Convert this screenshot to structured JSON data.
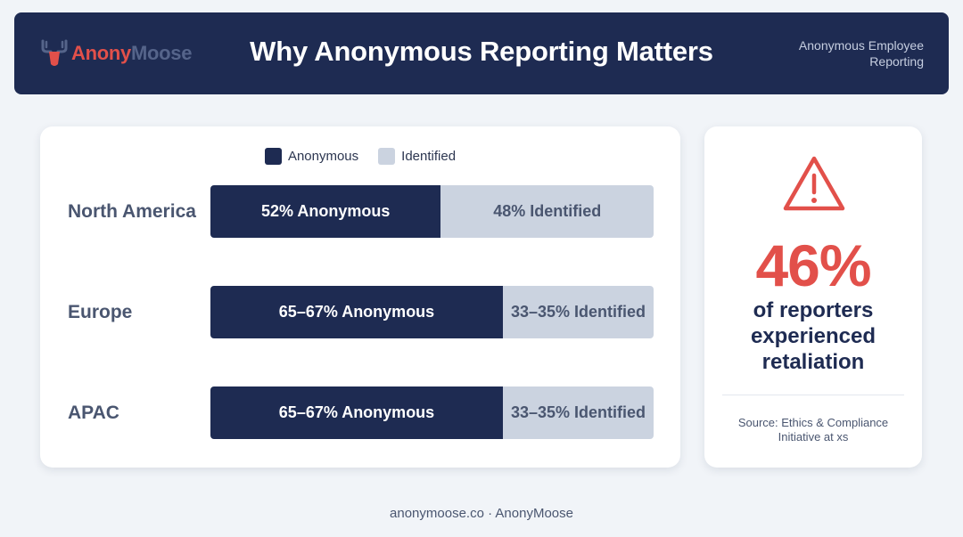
{
  "header": {
    "logo_part1": "Anony",
    "logo_part2": "Moose",
    "title": "Why Anonymous Reporting Matters",
    "tagline": "Anonymous Employee Reporting"
  },
  "colors": {
    "header_bg": "#1e2b52",
    "anonymous": "#1e2b52",
    "identified": "#cbd3e0",
    "accent": "#e2504a"
  },
  "chart_data": {
    "type": "bar",
    "orientation": "horizontal",
    "stacked": true,
    "categories": [
      "North America",
      "Europe",
      "APAC"
    ],
    "series": [
      {
        "name": "Anonymous",
        "values": [
          52,
          66,
          66
        ],
        "labels": [
          "52% Anonymous",
          "65–67% Anonymous",
          "65–67% Anonymous"
        ]
      },
      {
        "name": "Identified",
        "values": [
          48,
          34,
          34
        ],
        "labels": [
          "48% Identified",
          "33–35% Identified",
          "33–35% Identified"
        ]
      }
    ],
    "legend": {
      "position": "top",
      "items": [
        "Anonymous",
        "Identified"
      ]
    }
  },
  "stat": {
    "icon": "warning-triangle-icon",
    "value": "46%",
    "text": "of reporters experienced retaliation",
    "source": "Source: Ethics & Compliance Initiative at xs"
  },
  "footer": {
    "text": "anonymoose.co · AnonyMoose"
  }
}
